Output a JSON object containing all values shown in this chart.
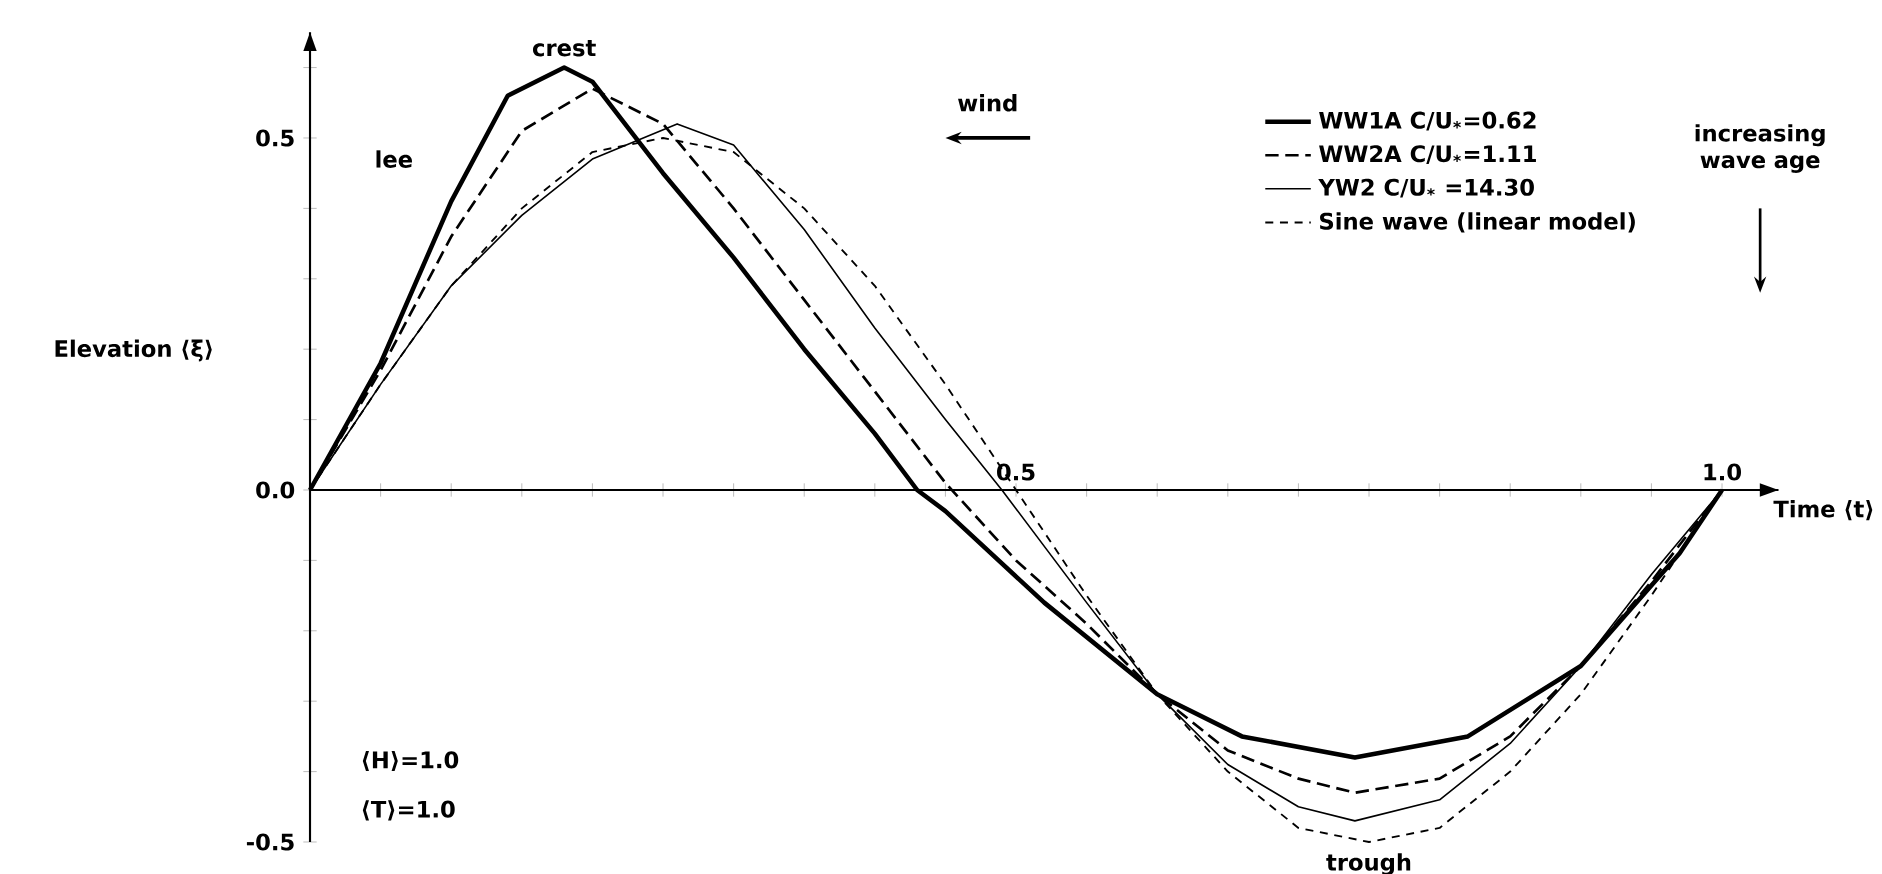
{
  "chart_data": {
    "type": "line",
    "xlabel": "Time ⟨t⟩",
    "ylabel": "Elevation ⟨ξ⟩",
    "legend": "top right",
    "xlim": [
      0,
      1.04
    ],
    "ylim": [
      -0.5,
      0.65
    ],
    "xticks": [
      {
        "value": 0.05,
        "label": null
      },
      {
        "value": 0.1,
        "label": null
      },
      {
        "value": 0.15,
        "label": null
      },
      {
        "value": 0.2,
        "label": null
      },
      {
        "value": 0.25,
        "label": null
      },
      {
        "value": 0.3,
        "label": null
      },
      {
        "value": 0.35,
        "label": null
      },
      {
        "value": 0.4,
        "label": null
      },
      {
        "value": 0.45,
        "label": null
      },
      {
        "value": 0.5,
        "label": "0.5"
      },
      {
        "value": 0.55,
        "label": null
      },
      {
        "value": 0.6,
        "label": null
      },
      {
        "value": 0.65,
        "label": null
      },
      {
        "value": 0.7,
        "label": null
      },
      {
        "value": 0.75,
        "label": null
      },
      {
        "value": 0.8,
        "label": null
      },
      {
        "value": 0.85,
        "label": null
      },
      {
        "value": 0.9,
        "label": null
      },
      {
        "value": 0.95,
        "label": null
      },
      {
        "value": 1.0,
        "label": "1.0"
      }
    ],
    "yticks": [
      {
        "value": -0.5,
        "label": "-0.5"
      },
      {
        "value": -0.4,
        "label": null
      },
      {
        "value": -0.3,
        "label": null
      },
      {
        "value": -0.2,
        "label": null
      },
      {
        "value": -0.1,
        "label": null
      },
      {
        "value": 0,
        "label": "0.0"
      },
      {
        "value": 0.1,
        "label": null
      },
      {
        "value": 0.2,
        "label": null
      },
      {
        "value": 0.3,
        "label": null
      },
      {
        "value": 0.4,
        "label": null
      },
      {
        "value": 0.5,
        "label": "0.5"
      },
      {
        "value": 0.6,
        "label": null
      }
    ],
    "series": [
      {
        "name": "WW1A C/U$_{*}$=0.62",
        "color": "#000000",
        "line_style": "solid",
        "x": [
          0,
          0.05,
          0.1,
          0.14,
          0.18,
          0.2,
          0.25,
          0.3,
          0.35,
          0.4,
          0.43,
          0.45,
          0.52,
          0.6,
          0.66,
          0.74,
          0.82,
          0.9,
          0.97,
          1
        ],
        "values": [
          0,
          0.18,
          0.41,
          0.56,
          0.6,
          0.58,
          0.45,
          0.33,
          0.2,
          0.08,
          0,
          -0.03,
          -0.16,
          -0.29,
          -0.35,
          -0.38,
          -0.35,
          -0.25,
          -0.09,
          0
        ]
      },
      {
        "name": "WW2A C/U$_{*}$=1.11",
        "color": "#000000",
        "line_style": "dashed",
        "x": [
          0,
          0.05,
          0.1,
          0.15,
          0.2,
          0.25,
          0.3,
          0.35,
          0.4,
          0.45,
          0.5,
          0.55,
          0.6,
          0.65,
          0.7,
          0.74,
          0.8,
          0.85,
          0.9,
          0.95,
          1
        ],
        "values": [
          0,
          0.17,
          0.36,
          0.51,
          0.57,
          0.52,
          0.4,
          0.27,
          0.14,
          0.01,
          -0.1,
          -0.19,
          -0.29,
          -0.37,
          -0.41,
          -0.43,
          -0.41,
          -0.35,
          -0.25,
          -0.13,
          0
        ]
      },
      {
        "name": "YW2 C/U$_{*}$ =14.30",
        "color": "#000000",
        "line_style": "solid",
        "x": [
          0,
          0.05,
          0.1,
          0.15,
          0.2,
          0.26,
          0.3,
          0.35,
          0.4,
          0.45,
          0.49,
          0.55,
          0.6,
          0.65,
          0.7,
          0.74,
          0.8,
          0.85,
          0.9,
          0.95,
          1
        ],
        "values": [
          0,
          0.15,
          0.29,
          0.39,
          0.47,
          0.52,
          0.49,
          0.37,
          0.23,
          0.1,
          0,
          -0.16,
          -0.29,
          -0.39,
          -0.45,
          -0.47,
          -0.44,
          -0.36,
          -0.25,
          -0.12,
          0
        ]
      },
      {
        "name": "Sine wave (linear model)",
        "color": "#000000",
        "line_style": "dashed",
        "x": [
          0,
          0.05,
          0.1,
          0.15,
          0.2,
          0.25,
          0.3,
          0.35,
          0.4,
          0.45,
          0.5,
          0.55,
          0.6,
          0.65,
          0.7,
          0.75,
          0.8,
          0.85,
          0.9,
          0.95,
          1
        ],
        "values": [
          0,
          0.15,
          0.29,
          0.4,
          0.48,
          0.5,
          0.48,
          0.4,
          0.29,
          0.15,
          0,
          -0.15,
          -0.29,
          -0.4,
          -0.48,
          -0.5,
          -0.48,
          -0.4,
          -0.29,
          -0.15,
          0
        ]
      }
    ],
    "annotations": [
      {
        "text": "crest",
        "x": 0.18,
        "y": 0.6
      },
      "lee",
      "wind",
      "increasing wave age",
      "⟨H⟩=1.0",
      "⟨T⟩=1.0",
      {
        "text": "trough",
        "x": 0.75,
        "y": -0.5
      }
    ]
  }
}
